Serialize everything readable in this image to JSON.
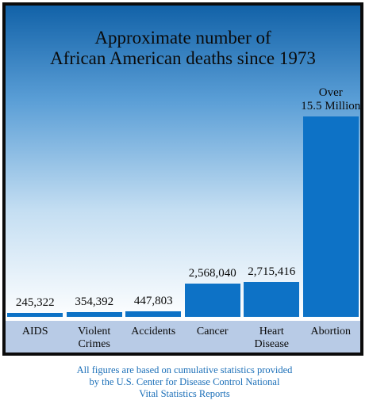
{
  "chart_data": {
    "type": "bar",
    "title": "Approximate number of\nAfrican American deaths since 1973",
    "categories": [
      "AIDS",
      "Violent\nCrimes",
      "Accidents",
      "Cancer",
      "Heart\nDisease",
      "Abortion"
    ],
    "values": [
      245322,
      354392,
      447803,
      2568040,
      2715416,
      15500000
    ],
    "value_labels": [
      "245,322",
      "354,392",
      "447,803",
      "2,568,040",
      "2,715,416",
      "Over\n15.5 Million"
    ],
    "grid": false,
    "legend": "none",
    "colors": {
      "bar": "#0d72c6",
      "axis_band": "#b8cbe6",
      "frame": "#0b0b0b",
      "footnote": "#1b6fb8"
    }
  },
  "footnote": "All figures are based on cumulative statistics provided\nby the U.S. Center for Disease Control National\nVital Statistics Reports"
}
